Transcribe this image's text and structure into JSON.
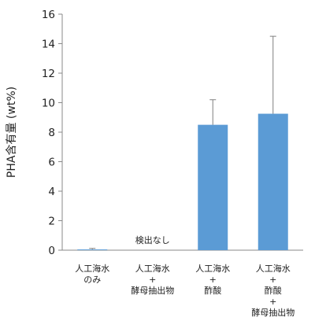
{
  "chart_data": {
    "type": "bar",
    "title": "",
    "xlabel": "",
    "ylabel": "PHA含有量 (wt%)",
    "ylim": [
      0,
      16
    ],
    "yticks": [
      0,
      2,
      4,
      6,
      8,
      10,
      12,
      14,
      16
    ],
    "grid": false,
    "legend": "none",
    "bar_color": "#5b9bd5",
    "error_color": "#7f7f7f",
    "categories": [
      [
        "人工海水",
        "のみ"
      ],
      [
        "人工海水",
        "+",
        "酵母抽出物"
      ],
      [
        "人工海水",
        "+",
        "酢酸"
      ],
      [
        "人工海水",
        "+",
        "酢酸",
        "+",
        "酵母抽出物"
      ]
    ],
    "values": [
      0.05,
      0,
      8.5,
      9.25
    ],
    "errors": [
      0.07,
      0,
      1.7,
      5.25
    ],
    "annotations": [
      {
        "category_index": 1,
        "text": "検出なし"
      }
    ]
  }
}
